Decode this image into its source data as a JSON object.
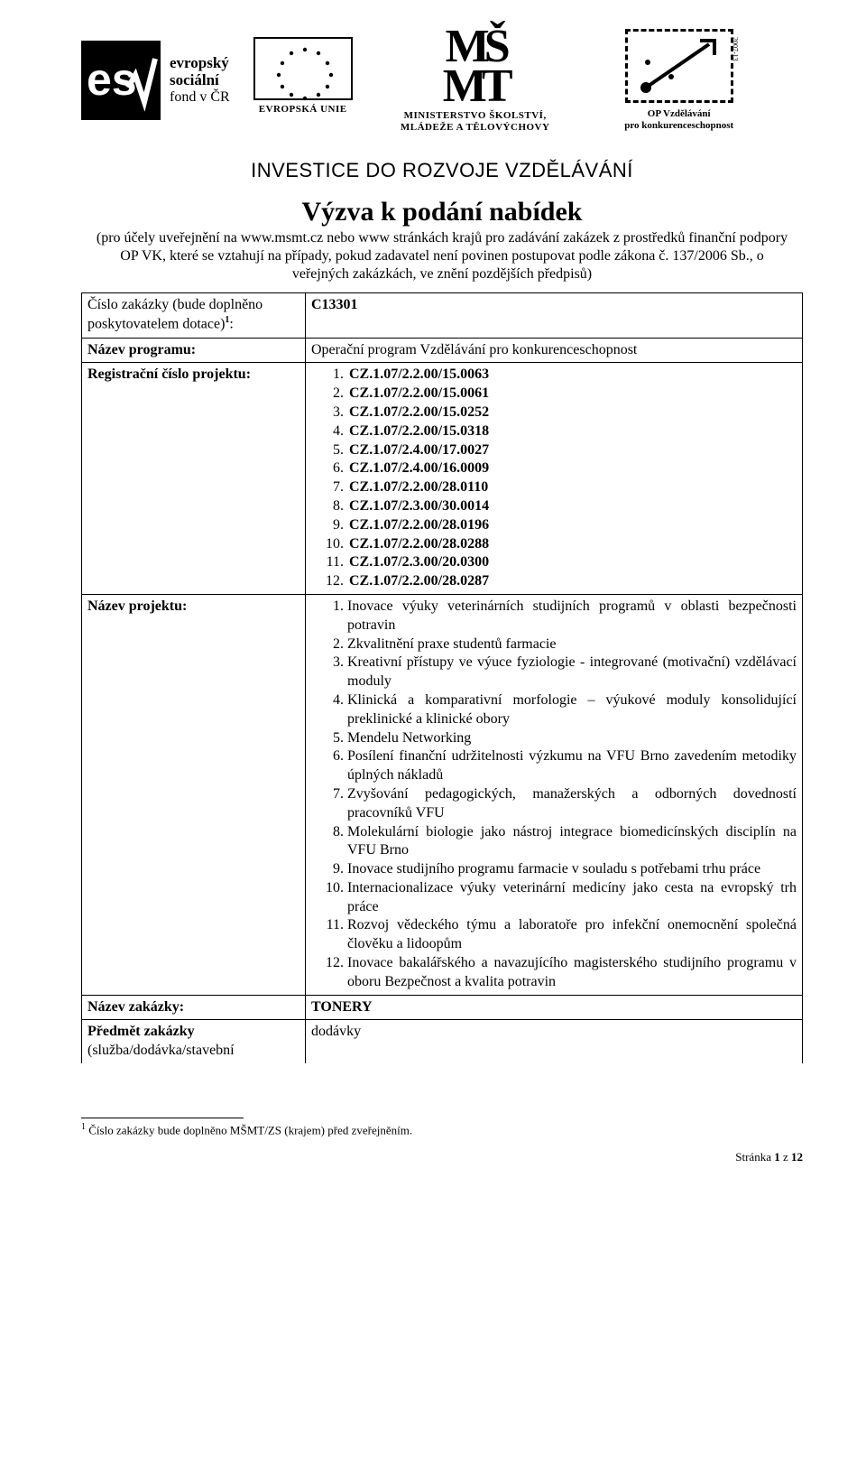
{
  "header": {
    "esf": {
      "line1": "evropský",
      "line2": "sociální",
      "line3": "fond v ČR"
    },
    "eu_label": "EVROPSKÁ UNIE",
    "msmt": {
      "line1": "MINISTERSTVO ŠKOLSTVÍ,",
      "line2": "MLÁDEŽE A TĚLOVÝCHOVY"
    },
    "opvk": {
      "side": "2007-13",
      "line1": "OP Vzdělávání",
      "line2": "pro konkurenceschopnost"
    },
    "invest": "INVESTICE DO ROZVOJE VZDĚLÁVÁNÍ"
  },
  "title": "Výzva k podání nabídek",
  "subtitle": "(pro účely uveřejnění na www.msmt.cz nebo www stránkách krajů pro zadávání zakázek z prostředků finanční podpory OP VK, které se vztahují na případy, pokud zadavatel není povinen postupovat podle zákona č. 137/2006 Sb., o veřejných zakázkách, ve znění pozdějších předpisů)",
  "table": {
    "row1": {
      "label_line1": "Číslo zakázky (bude doplněno",
      "label_line2": "poskytovatelem dotace)",
      "label_sup": "1",
      "label_after": ":",
      "value": "C13301"
    },
    "row2": {
      "label": "Název programu:",
      "value": "Operační program Vzdělávání pro konkurenceschopnost"
    },
    "row3": {
      "label": "Registrační číslo projektu:",
      "items": [
        "CZ.1.07/2.2.00/15.0063",
        "CZ.1.07/2.2.00/15.0061",
        "CZ.1.07/2.2.00/15.0252",
        "CZ.1.07/2.2.00/15.0318",
        "CZ.1.07/2.4.00/17.0027",
        "CZ.1.07/2.4.00/16.0009",
        "CZ.1.07/2.2.00/28.0110",
        "CZ.1.07/2.3.00/30.0014",
        "CZ.1.07/2.2.00/28.0196",
        "CZ.1.07/2.2.00/28.0288",
        "CZ.1.07/2.3.00/20.0300",
        "CZ.1.07/2.2.00/28.0287"
      ]
    },
    "row4": {
      "label": "Název projektu:",
      "items": [
        "Inovace výuky veterinárních studijních programů v oblasti bezpečnosti potravin",
        "Zkvalitnění praxe studentů farmacie",
        "Kreativní přístupy ve výuce fyziologie - integrované (motivační) vzdělávací moduly",
        "Klinická a komparativní morfologie – výukové moduly konsolidující preklinické a klinické obory",
        "Mendelu Networking",
        "Posílení finanční udržitelnosti výzkumu na VFU Brno zavedením metodiky úplných nákladů",
        "Zvyšování pedagogických, manažerských a odborných dovedností pracovníků VFU",
        "Molekulární biologie jako nástroj integrace biomedicínských disciplín na VFU Brno",
        "Inovace studijního programu farmacie v souladu s potřebami trhu práce",
        "Internacionalizace výuky veterinární medicíny jako cesta na evropský trh práce",
        "Rozvoj vědeckého týmu a laboratoře pro infekční onemocnění společná člověku a lidoopům",
        "Inovace bakalářského a navazujícího magisterského studijního programu v oboru Bezpečnost a kvalita potravin"
      ]
    },
    "row5": {
      "label": "Název zakázky:",
      "value": "TONERY"
    },
    "row6": {
      "label_line1": "Předmět zakázky",
      "label_line2": "(služba/dodávka/stavební",
      "value": "dodávky"
    }
  },
  "footnote": {
    "sup": "1",
    "text": " Číslo zakázky bude doplněno MŠMT/ZS (krajem)  před zveřejněním."
  },
  "pagenum": {
    "label": "Stránka ",
    "n": "1",
    "of_label": " z ",
    "total": "12"
  }
}
